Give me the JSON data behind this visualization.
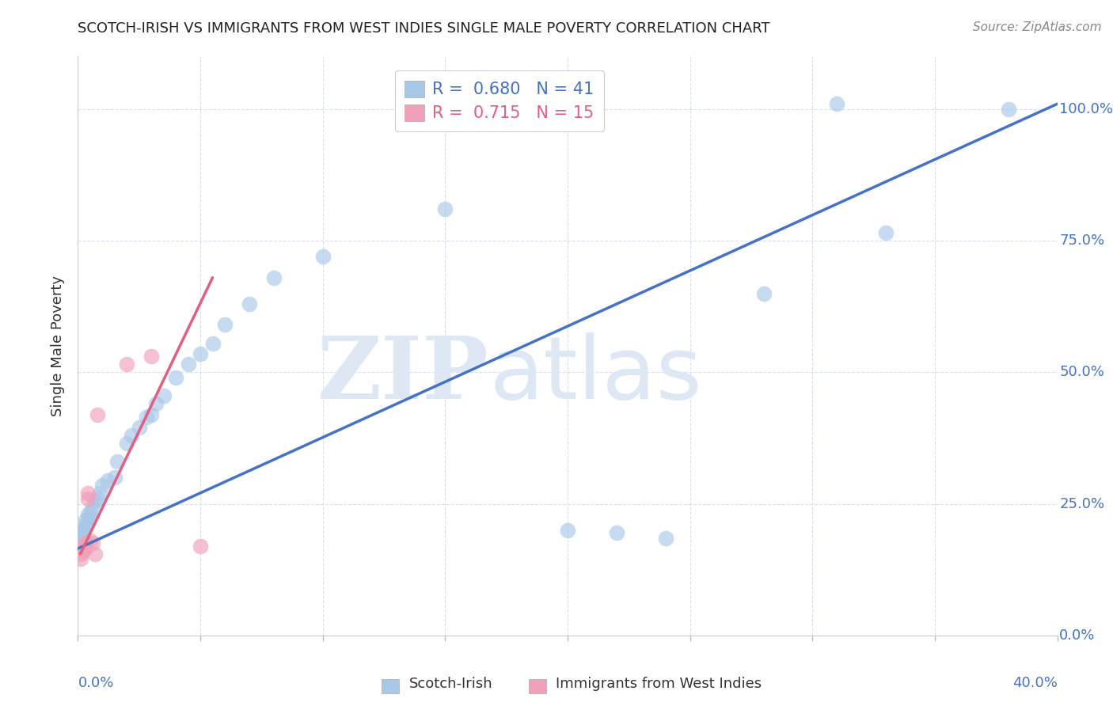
{
  "title": "SCOTCH-IRISH VS IMMIGRANTS FROM WEST INDIES SINGLE MALE POVERTY CORRELATION CHART",
  "source": "Source: ZipAtlas.com",
  "ylabel": "Single Male Poverty",
  "legend_label1": "Scotch-Irish",
  "legend_label2": "Immigrants from West Indies",
  "R1": 0.68,
  "N1": 41,
  "R2": 0.715,
  "N2": 15,
  "color_blue": "#a8c8e8",
  "color_pink": "#f0a0b8",
  "color_blue_line": "#4472c4",
  "color_pink_line": "#e06080",
  "color_pink_dash": "#e8b0c0",
  "color_axis_label": "#4472c4",
  "background": "#ffffff",
  "xlim": [
    0.0,
    0.4
  ],
  "ylim": [
    0.0,
    1.1
  ],
  "x_ticks": [
    0.0,
    0.05,
    0.1,
    0.15,
    0.2,
    0.25,
    0.3,
    0.35,
    0.4
  ],
  "y_ticks": [
    0.0,
    0.25,
    0.5,
    0.75,
    1.0
  ],
  "y_tick_labels": [
    "0.0%",
    "25.0%",
    "50.0%",
    "75.0%",
    "100.0%"
  ],
  "blue_line_x": [
    0.0,
    0.4
  ],
  "blue_line_y": [
    0.165,
    1.01
  ],
  "pink_line_x": [
    0.001,
    0.055
  ],
  "pink_line_y": [
    0.155,
    0.68
  ],
  "si_x": [
    0.001,
    0.001,
    0.002,
    0.002,
    0.003,
    0.003,
    0.004,
    0.004,
    0.005,
    0.005,
    0.006,
    0.007,
    0.008,
    0.009,
    0.01,
    0.012,
    0.015,
    0.016,
    0.02,
    0.022,
    0.025,
    0.028,
    0.03,
    0.032,
    0.035,
    0.04,
    0.045,
    0.05,
    0.055,
    0.06,
    0.07,
    0.08,
    0.1,
    0.15,
    0.2,
    0.22,
    0.24,
    0.28,
    0.31,
    0.33,
    0.38
  ],
  "si_y": [
    0.185,
    0.195,
    0.19,
    0.2,
    0.21,
    0.22,
    0.215,
    0.23,
    0.235,
    0.225,
    0.245,
    0.255,
    0.26,
    0.27,
    0.285,
    0.295,
    0.3,
    0.33,
    0.365,
    0.38,
    0.395,
    0.415,
    0.42,
    0.44,
    0.455,
    0.49,
    0.515,
    0.535,
    0.555,
    0.59,
    0.63,
    0.68,
    0.72,
    0.81,
    0.2,
    0.195,
    0.185,
    0.65,
    1.01,
    0.765,
    1.0
  ],
  "wi_x": [
    0.001,
    0.001,
    0.002,
    0.002,
    0.003,
    0.003,
    0.004,
    0.004,
    0.005,
    0.006,
    0.007,
    0.008,
    0.02,
    0.03,
    0.05
  ],
  "wi_y": [
    0.155,
    0.145,
    0.16,
    0.17,
    0.175,
    0.165,
    0.26,
    0.27,
    0.18,
    0.175,
    0.155,
    0.42,
    0.515,
    0.53,
    0.17
  ]
}
